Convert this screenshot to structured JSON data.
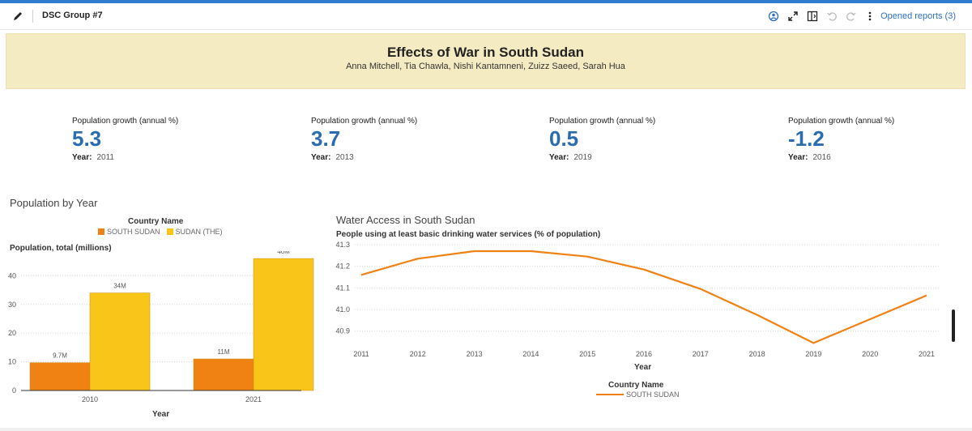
{
  "toolbar": {
    "title": "DSC Group #7",
    "opened_reports": "Opened reports (3)",
    "icons": [
      "edit-icon",
      "collaborate-icon",
      "expand-icon",
      "panel-toggle-icon",
      "undo-icon",
      "redo-icon",
      "more-icon"
    ]
  },
  "banner": {
    "title": "Effects of War in South Sudan",
    "authors": "Anna Mitchell, Tia Chawla, Nishi Kantamneni, Zuizz Saeed, Sarah Hua"
  },
  "kpis": [
    {
      "label": "Population growth (annual %)",
      "value": "5.3",
      "year_label": "Year:",
      "year": "2011"
    },
    {
      "label": "Population growth (annual %)",
      "value": "3.7",
      "year_label": "Year:",
      "year": "2013"
    },
    {
      "label": "Population growth (annual %)",
      "value": "0.5",
      "year_label": "Year:",
      "year": "2019"
    },
    {
      "label": "Population growth (annual %)",
      "value": "-1.2",
      "year_label": "Year:",
      "year": "2016"
    }
  ],
  "bar_section": {
    "title": "Population by Year",
    "legend_title": "Country Name",
    "legend": [
      "SOUTH SUDAN",
      "SUDAN (THE)"
    ]
  },
  "line_section": {
    "title": "Water Access in South Sudan",
    "legend_title": "Country Name",
    "legend": [
      "SOUTH SUDAN"
    ]
  },
  "colors": {
    "south_sudan": "#f08214",
    "sudan": "#f9c518",
    "kpi_value": "#2a6cb0",
    "banner": "#f5ebc3"
  },
  "chart_data": [
    {
      "type": "bar",
      "ylabel": "Population, total (millions)",
      "xlabel": "Year",
      "categories": [
        "2010",
        "2021"
      ],
      "ylim": [
        0,
        48
      ],
      "yticks": [
        0,
        10,
        20,
        30,
        40
      ],
      "series": [
        {
          "name": "SOUTH SUDAN",
          "values": [
            9.7,
            11
          ],
          "labels": [
            "9.7M",
            "11M"
          ]
        },
        {
          "name": "SUDAN (THE)",
          "values": [
            34,
            46
          ],
          "labels": [
            "34M",
            "46M"
          ]
        }
      ],
      "grid": true
    },
    {
      "type": "line",
      "ylabel": "People using at least basic drinking water services (% of population)",
      "xlabel": "Year",
      "x": [
        2011,
        2012,
        2013,
        2014,
        2015,
        2016,
        2017,
        2018,
        2019,
        2020,
        2021
      ],
      "ylim": [
        40.85,
        41.3
      ],
      "yticks": [
        40.9,
        41.0,
        41.1,
        41.2,
        41.3
      ],
      "ytick_labels": [
        "40.9",
        "41.0",
        "41.1",
        "41.2",
        "41.3"
      ],
      "series": [
        {
          "name": "SOUTH SUDAN",
          "values": [
            41.16,
            41.235,
            41.27,
            41.27,
            41.245,
            41.185,
            41.095,
            40.975,
            40.845,
            40.955,
            41.065
          ]
        }
      ],
      "grid": true
    }
  ]
}
